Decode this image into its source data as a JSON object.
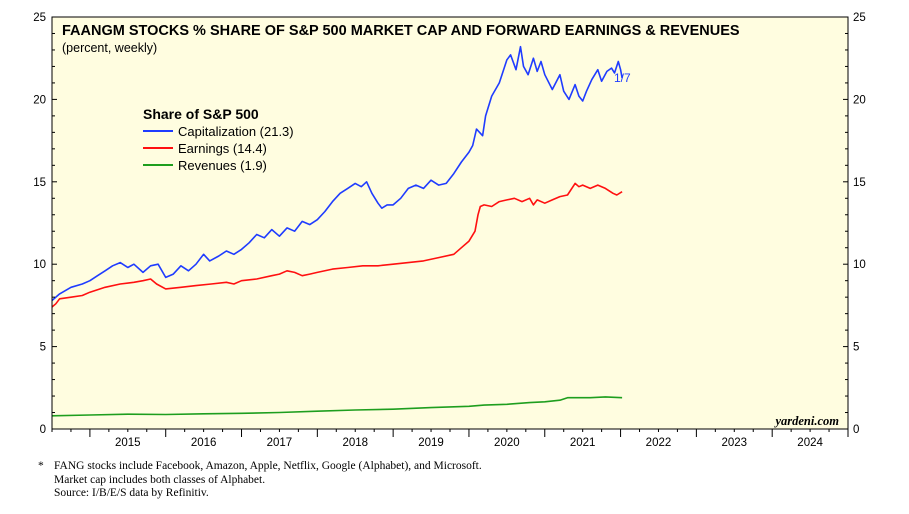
{
  "chart_data": {
    "type": "line",
    "title": "FAANGM STOCKS % SHARE OF S&P 500 MARKET CAP AND FORWARD EARNINGS & REVENUES",
    "subtitle": "(percent, weekly)",
    "legend_title": "Share of S&P 500",
    "legend_position": "top-left",
    "end_label": "1/7",
    "watermark": "yardeni.com",
    "xlabel": "",
    "ylabel": "",
    "xlim": [
      2014.5,
      2025.0
    ],
    "ylim": [
      0,
      25
    ],
    "y_ticks": [
      0,
      5,
      10,
      15,
      20,
      25
    ],
    "x_tick_labels": [
      "2015",
      "2016",
      "2017",
      "2018",
      "2019",
      "2020",
      "2021",
      "2022",
      "2023",
      "2024"
    ],
    "grid": false,
    "background_color": "#fffde0",
    "series": [
      {
        "name": "Capitalization (21.3)",
        "color": "#1f3cff",
        "points": [
          [
            2014.5,
            7.8
          ],
          [
            2014.6,
            8.2
          ],
          [
            2014.75,
            8.6
          ],
          [
            2014.9,
            8.8
          ],
          [
            2015.0,
            9.0
          ],
          [
            2015.1,
            9.3
          ],
          [
            2015.2,
            9.6
          ],
          [
            2015.3,
            9.9
          ],
          [
            2015.4,
            10.1
          ],
          [
            2015.5,
            9.8
          ],
          [
            2015.58,
            10.0
          ],
          [
            2015.7,
            9.5
          ],
          [
            2015.8,
            9.9
          ],
          [
            2015.9,
            10.0
          ],
          [
            2016.0,
            9.2
          ],
          [
            2016.1,
            9.4
          ],
          [
            2016.2,
            9.9
          ],
          [
            2016.3,
            9.6
          ],
          [
            2016.4,
            10.0
          ],
          [
            2016.5,
            10.6
          ],
          [
            2016.58,
            10.2
          ],
          [
            2016.7,
            10.5
          ],
          [
            2016.8,
            10.8
          ],
          [
            2016.9,
            10.6
          ],
          [
            2017.0,
            10.9
          ],
          [
            2017.1,
            11.3
          ],
          [
            2017.2,
            11.8
          ],
          [
            2017.3,
            11.6
          ],
          [
            2017.4,
            12.1
          ],
          [
            2017.5,
            11.7
          ],
          [
            2017.6,
            12.2
          ],
          [
            2017.7,
            12.0
          ],
          [
            2017.8,
            12.6
          ],
          [
            2017.9,
            12.4
          ],
          [
            2018.0,
            12.7
          ],
          [
            2018.1,
            13.2
          ],
          [
            2018.2,
            13.8
          ],
          [
            2018.3,
            14.3
          ],
          [
            2018.4,
            14.6
          ],
          [
            2018.5,
            14.9
          ],
          [
            2018.58,
            14.7
          ],
          [
            2018.65,
            15.0
          ],
          [
            2018.72,
            14.3
          ],
          [
            2018.8,
            13.7
          ],
          [
            2018.85,
            13.4
          ],
          [
            2018.92,
            13.6
          ],
          [
            2019.0,
            13.6
          ],
          [
            2019.1,
            14.0
          ],
          [
            2019.2,
            14.6
          ],
          [
            2019.3,
            14.8
          ],
          [
            2019.4,
            14.6
          ],
          [
            2019.5,
            15.1
          ],
          [
            2019.6,
            14.8
          ],
          [
            2019.7,
            14.9
          ],
          [
            2019.8,
            15.5
          ],
          [
            2019.9,
            16.2
          ],
          [
            2020.0,
            16.8
          ],
          [
            2020.05,
            17.2
          ],
          [
            2020.1,
            18.2
          ],
          [
            2020.18,
            17.8
          ],
          [
            2020.22,
            19.0
          ],
          [
            2020.3,
            20.2
          ],
          [
            2020.4,
            21.0
          ],
          [
            2020.5,
            22.4
          ],
          [
            2020.55,
            22.7
          ],
          [
            2020.62,
            21.8
          ],
          [
            2020.68,
            23.2
          ],
          [
            2020.72,
            22.0
          ],
          [
            2020.78,
            21.5
          ],
          [
            2020.85,
            22.5
          ],
          [
            2020.9,
            21.7
          ],
          [
            2020.95,
            22.3
          ],
          [
            2021.0,
            21.5
          ],
          [
            2021.1,
            20.6
          ],
          [
            2021.2,
            21.5
          ],
          [
            2021.25,
            20.5
          ],
          [
            2021.32,
            20.0
          ],
          [
            2021.4,
            20.9
          ],
          [
            2021.45,
            20.2
          ],
          [
            2021.5,
            19.9
          ],
          [
            2021.55,
            20.5
          ],
          [
            2021.62,
            21.2
          ],
          [
            2021.7,
            21.8
          ],
          [
            2021.75,
            21.1
          ],
          [
            2021.82,
            21.7
          ],
          [
            2021.88,
            21.9
          ],
          [
            2021.92,
            21.6
          ],
          [
            2021.97,
            22.3
          ],
          [
            2022.0,
            21.8
          ],
          [
            2022.02,
            21.3
          ]
        ]
      },
      {
        "name": "Earnings (14.4)",
        "color": "#ff1010",
        "points": [
          [
            2014.5,
            7.4
          ],
          [
            2014.55,
            7.6
          ],
          [
            2014.6,
            7.9
          ],
          [
            2014.75,
            8.0
          ],
          [
            2014.9,
            8.1
          ],
          [
            2015.0,
            8.3
          ],
          [
            2015.2,
            8.6
          ],
          [
            2015.4,
            8.8
          ],
          [
            2015.58,
            8.9
          ],
          [
            2015.7,
            9.0
          ],
          [
            2015.8,
            9.1
          ],
          [
            2015.88,
            8.8
          ],
          [
            2016.0,
            8.5
          ],
          [
            2016.2,
            8.6
          ],
          [
            2016.4,
            8.7
          ],
          [
            2016.6,
            8.8
          ],
          [
            2016.8,
            8.9
          ],
          [
            2016.9,
            8.8
          ],
          [
            2017.0,
            9.0
          ],
          [
            2017.2,
            9.1
          ],
          [
            2017.4,
            9.3
          ],
          [
            2017.5,
            9.4
          ],
          [
            2017.6,
            9.6
          ],
          [
            2017.7,
            9.5
          ],
          [
            2017.8,
            9.3
          ],
          [
            2017.9,
            9.4
          ],
          [
            2018.0,
            9.5
          ],
          [
            2018.2,
            9.7
          ],
          [
            2018.4,
            9.8
          ],
          [
            2018.6,
            9.9
          ],
          [
            2018.8,
            9.9
          ],
          [
            2019.0,
            10.0
          ],
          [
            2019.2,
            10.1
          ],
          [
            2019.4,
            10.2
          ],
          [
            2019.6,
            10.4
          ],
          [
            2019.8,
            10.6
          ],
          [
            2019.9,
            11.0
          ],
          [
            2020.0,
            11.4
          ],
          [
            2020.08,
            12.0
          ],
          [
            2020.12,
            13.0
          ],
          [
            2020.15,
            13.5
          ],
          [
            2020.2,
            13.6
          ],
          [
            2020.3,
            13.5
          ],
          [
            2020.4,
            13.8
          ],
          [
            2020.5,
            13.9
          ],
          [
            2020.6,
            14.0
          ],
          [
            2020.7,
            13.8
          ],
          [
            2020.8,
            14.0
          ],
          [
            2020.85,
            13.6
          ],
          [
            2020.9,
            13.9
          ],
          [
            2021.0,
            13.7
          ],
          [
            2021.1,
            13.9
          ],
          [
            2021.2,
            14.1
          ],
          [
            2021.3,
            14.2
          ],
          [
            2021.4,
            14.9
          ],
          [
            2021.45,
            14.7
          ],
          [
            2021.5,
            14.8
          ],
          [
            2021.6,
            14.6
          ],
          [
            2021.7,
            14.8
          ],
          [
            2021.8,
            14.6
          ],
          [
            2021.9,
            14.3
          ],
          [
            2021.95,
            14.2
          ],
          [
            2022.02,
            14.4
          ]
        ]
      },
      {
        "name": "Revenues (1.9)",
        "color": "#1e9e1e",
        "points": [
          [
            2014.5,
            0.8
          ],
          [
            2015.0,
            0.85
          ],
          [
            2015.5,
            0.9
          ],
          [
            2016.0,
            0.88
          ],
          [
            2016.5,
            0.92
          ],
          [
            2017.0,
            0.95
          ],
          [
            2017.5,
            1.0
          ],
          [
            2018.0,
            1.08
          ],
          [
            2018.5,
            1.15
          ],
          [
            2019.0,
            1.2
          ],
          [
            2019.5,
            1.3
          ],
          [
            2020.0,
            1.38
          ],
          [
            2020.2,
            1.45
          ],
          [
            2020.5,
            1.5
          ],
          [
            2020.8,
            1.6
          ],
          [
            2021.0,
            1.65
          ],
          [
            2021.2,
            1.75
          ],
          [
            2021.3,
            1.9
          ],
          [
            2021.6,
            1.9
          ],
          [
            2021.8,
            1.95
          ],
          [
            2022.02,
            1.9
          ]
        ]
      }
    ]
  },
  "footnote": {
    "marker": "*",
    "lines": [
      "FANG stocks include Facebook, Amazon, Apple, Netflix, Google (Alphabet), and Microsoft.",
      "Market cap includes both classes of Alphabet.",
      "Source: I/B/E/S data by Refinitiv."
    ]
  }
}
